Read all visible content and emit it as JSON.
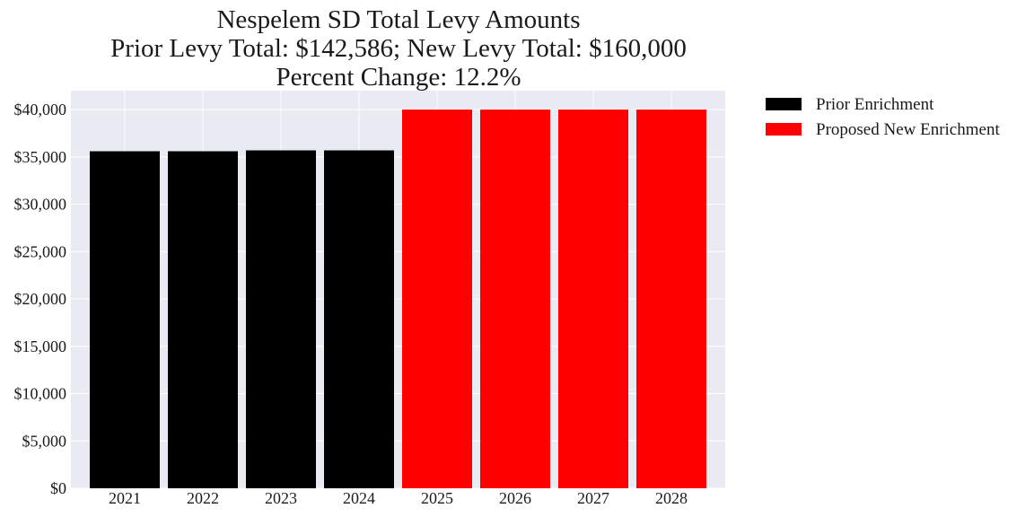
{
  "chart_data": {
    "type": "bar",
    "title_lines": [
      "Nespelem SD Total Levy Amounts",
      "Prior Levy Total:  $142,586; New Levy Total: $160,000",
      "Percent Change: 12.2%"
    ],
    "categories": [
      "2021",
      "2022",
      "2023",
      "2024",
      "2025",
      "2026",
      "2027",
      "2028"
    ],
    "series": [
      {
        "name": "Prior Enrichment",
        "color": "#000000",
        "values": [
          35600,
          35600,
          35693,
          35693,
          null,
          null,
          null,
          null
        ]
      },
      {
        "name": "Proposed New Enrichment",
        "color": "#ff0000",
        "values": [
          null,
          null,
          null,
          null,
          40000,
          40000,
          40000,
          40000
        ]
      }
    ],
    "y_ticks": [
      0,
      5000,
      10000,
      15000,
      20000,
      25000,
      30000,
      35000,
      40000
    ],
    "y_tick_labels": [
      "$0",
      "$5,000",
      "$10,000",
      "$15,000",
      "$20,000",
      "$25,000",
      "$30,000",
      "$35,000",
      "$40,000"
    ],
    "ylim": [
      0,
      42000
    ],
    "grid": true,
    "background_color": "#eaeaf2",
    "legend_position": "outside-right-top"
  }
}
